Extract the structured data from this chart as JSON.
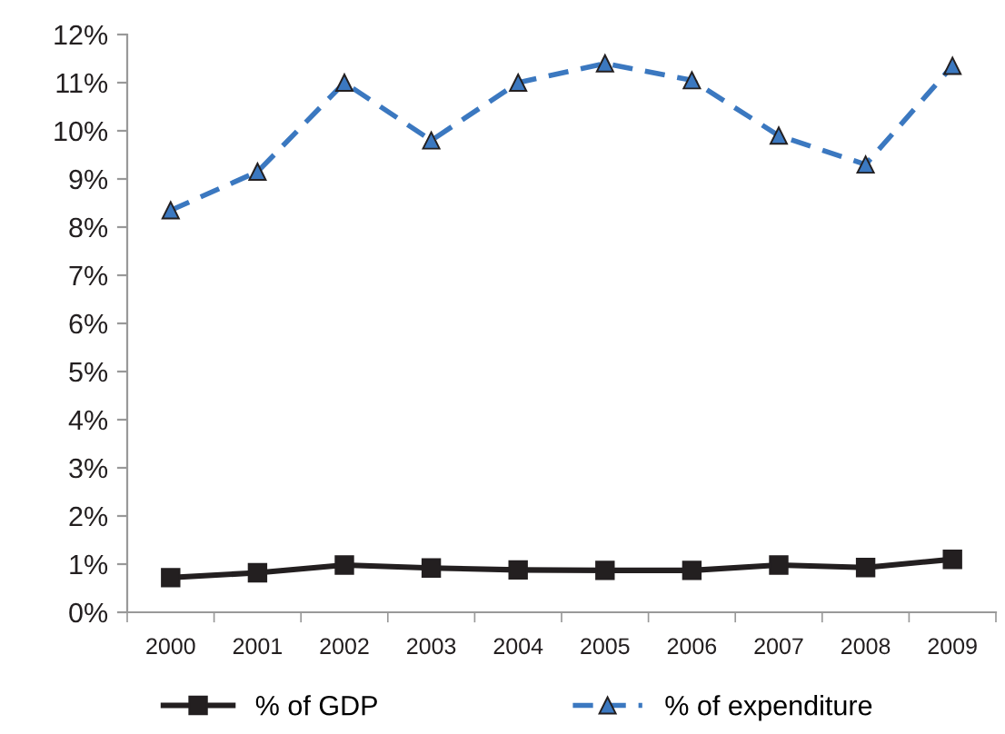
{
  "chart_data": {
    "type": "line",
    "categories": [
      "2000",
      "2001",
      "2002",
      "2003",
      "2004",
      "2005",
      "2006",
      "2007",
      "2008",
      "2009"
    ],
    "series": [
      {
        "name": "% of GDP",
        "color": "#231f20",
        "marker": "square",
        "line_style": "solid",
        "values": [
          0.72,
          0.82,
          0.98,
          0.92,
          0.88,
          0.87,
          0.87,
          0.98,
          0.93,
          1.1
        ]
      },
      {
        "name": "% of expenditure",
        "color": "#3b78c0",
        "marker": "triangle",
        "line_style": "dashed",
        "values": [
          8.35,
          9.15,
          11.0,
          9.8,
          11.0,
          11.4,
          11.05,
          9.9,
          9.3,
          11.35
        ]
      }
    ],
    "ylim": [
      0,
      12
    ],
    "yticks": [
      {
        "value": 0,
        "label": "0%"
      },
      {
        "value": 1,
        "label": "1%"
      },
      {
        "value": 2,
        "label": "2%"
      },
      {
        "value": 3,
        "label": "3%"
      },
      {
        "value": 4,
        "label": "4%"
      },
      {
        "value": 5,
        "label": "5%"
      },
      {
        "value": 6,
        "label": "6%"
      },
      {
        "value": 7,
        "label": "7%"
      },
      {
        "value": 8,
        "label": "8%"
      },
      {
        "value": 9,
        "label": "9%"
      },
      {
        "value": 10,
        "label": "10%"
      },
      {
        "value": 11,
        "label": "11%"
      },
      {
        "value": 12,
        "label": "12%"
      }
    ],
    "grid": false,
    "legend": "bottom"
  }
}
